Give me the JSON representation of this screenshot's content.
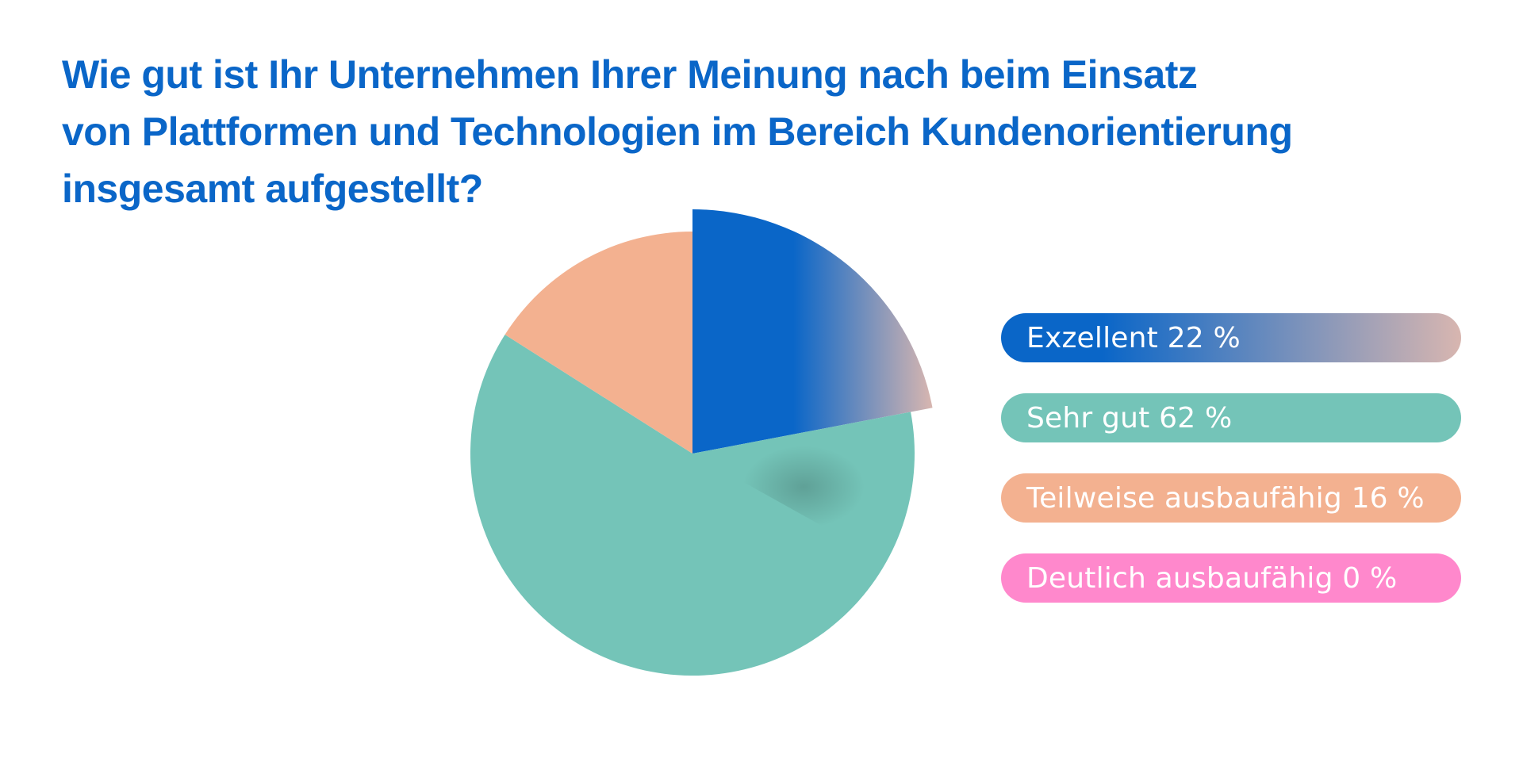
{
  "chart_data": {
    "type": "pie",
    "title_lines": [
      "Wie gut ist Ihr Unternehmen Ihrer Meinung nach beim Einsatz",
      "von Plattformen und Technologien im Bereich Kundenorientierung",
      "insgesamt aufgestellt?"
    ],
    "slices": [
      {
        "label": "Exzellent",
        "value": 22,
        "display": "Exzellent 22 %",
        "color": "#0a66c8",
        "color_end": "#d8b6b0",
        "exploded": true
      },
      {
        "label": "Sehr gut",
        "value": 62,
        "display": "Sehr gut 62 %",
        "color": "#74c4b8",
        "exploded": false
      },
      {
        "label": "Teilweise ausbaufähig",
        "value": 16,
        "display": "Teilweise ausbaufähig 16 %",
        "color": "#f3b190",
        "exploded": false
      },
      {
        "label": "Deutlich ausbaufähig",
        "value": 0,
        "display": "Deutlich ausbaufähig 0 %",
        "color": "#ff88cc",
        "exploded": false
      }
    ],
    "legend_position": "right"
  }
}
